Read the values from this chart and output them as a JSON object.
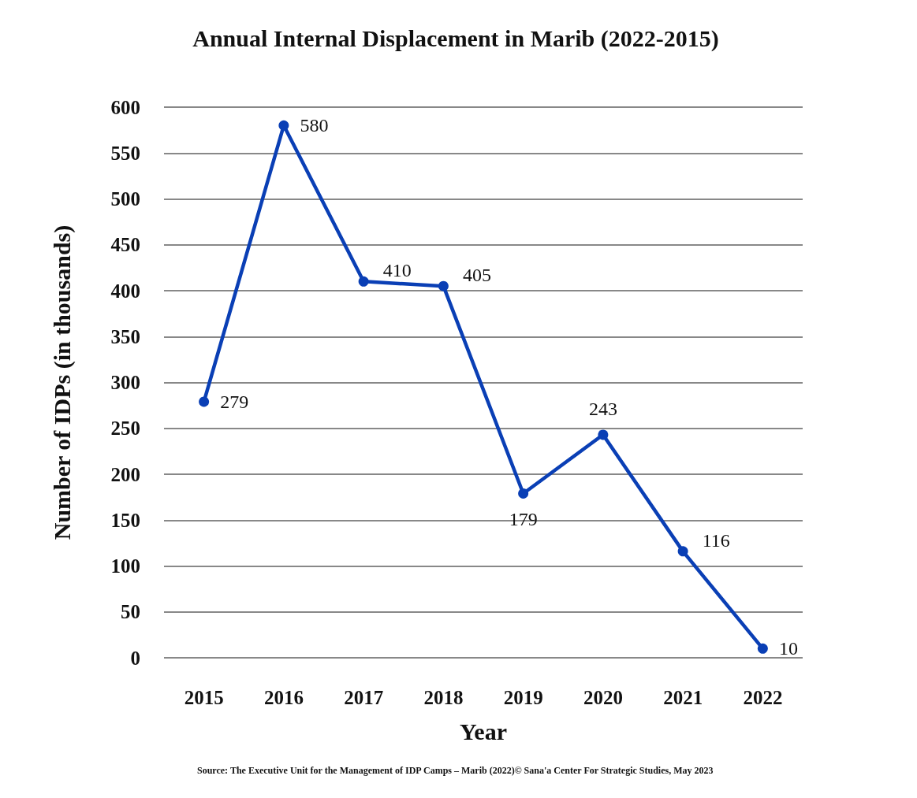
{
  "chart_data": {
    "type": "line",
    "title": "Annual Internal Displacement in Marib (2022-2015)",
    "xlabel": "Year",
    "ylabel": "Number of IDPs (in thousands)",
    "categories": [
      "2015",
      "2016",
      "2017",
      "2018",
      "2019",
      "2020",
      "2021",
      "2022"
    ],
    "series": [
      {
        "color": "#0a3fb5",
        "values": [
          279,
          580,
          410,
          405,
          179,
          243,
          116,
          10
        ]
      }
    ],
    "ylim": [
      0,
      600
    ],
    "yticks": [
      0,
      50,
      100,
      150,
      200,
      250,
      300,
      350,
      400,
      450,
      500,
      550,
      600
    ],
    "grid": "y",
    "marker": "circle",
    "line_style": "solid",
    "data_labels": true,
    "annotations": [
      "Source: The Executive Unit for the Management of IDP Camps – Marib (2022)© Sana'a Center For Strategic Studies, May 2023"
    ]
  }
}
